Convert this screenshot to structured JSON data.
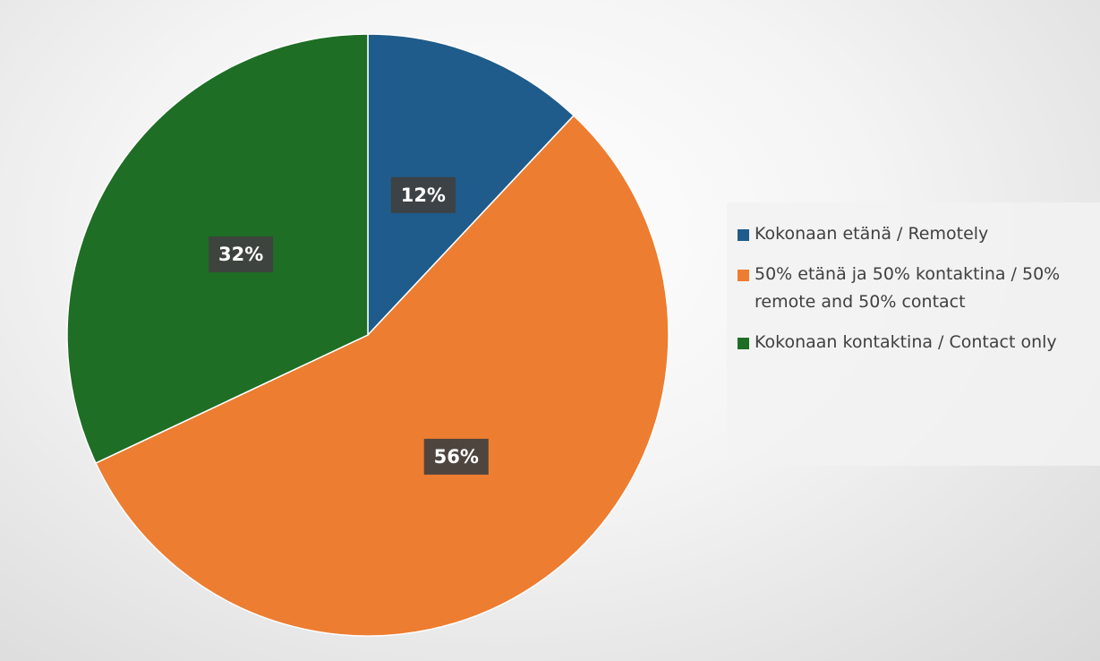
{
  "chart_data": {
    "type": "pie",
    "categories": [
      "Kokonaan etänä / Remotely",
      "50% etänä ja 50% kontaktina / 50% remote and 50% contact",
      "Kokonaan kontaktina / Contact only"
    ],
    "values": [
      12,
      56,
      32
    ],
    "value_labels": [
      "12%",
      "56%",
      "32%"
    ],
    "colors": [
      "#1f5c8b",
      "#ed7d31",
      "#1e6e25"
    ],
    "legend": "right"
  }
}
